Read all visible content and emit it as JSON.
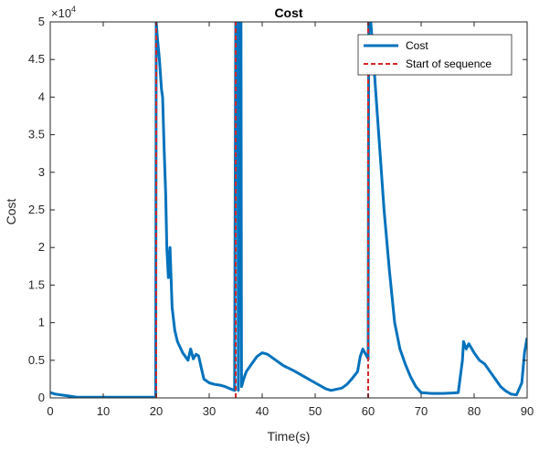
{
  "chart_data": {
    "type": "line",
    "title": "Cost",
    "xlabel": "Time(s)",
    "ylabel": "Cost",
    "xlim": [
      0,
      90
    ],
    "ylim": [
      0,
      50000
    ],
    "x_ticks": [
      0,
      10,
      20,
      30,
      40,
      50,
      60,
      70,
      80,
      90
    ],
    "x_tick_labels": [
      "0",
      "10",
      "20",
      "30",
      "40",
      "50",
      "60",
      "70",
      "80",
      "90"
    ],
    "y_ticks": [
      0,
      5000,
      10000,
      15000,
      20000,
      25000,
      30000,
      35000,
      40000,
      45000,
      50000
    ],
    "y_tick_labels": [
      "0",
      "0.5",
      "1",
      "1.5",
      "2",
      "2.5",
      "3",
      "3.5",
      "4",
      "4.5",
      "5"
    ],
    "y_exponent_base": "×10",
    "y_exponent_power": "4",
    "legend_position": "top-right",
    "grid": false,
    "series": [
      {
        "name": "Cost",
        "color": "#0072BD",
        "style": "solid",
        "x": [
          0,
          1,
          2,
          3,
          4,
          5,
          7,
          10,
          15,
          19.9,
          20,
          20.2,
          20.6,
          21,
          21.2,
          21.5,
          21.8,
          22,
          22.3,
          22.6,
          23,
          23.5,
          24,
          25,
          26,
          26.5,
          27,
          27.5,
          28,
          28.5,
          29,
          30,
          31,
          32,
          33,
          34,
          34.8,
          35,
          35.4,
          35.5,
          35.8,
          36,
          36.1,
          36.5,
          37,
          38,
          39,
          40,
          41,
          42,
          44,
          46,
          48,
          50,
          52,
          53,
          55,
          56,
          57,
          58,
          58.5,
          59,
          60,
          60.1,
          60.5,
          61,
          62,
          63,
          64,
          65,
          66,
          67,
          68,
          69,
          70,
          72,
          74,
          76,
          77,
          77.8,
          78,
          78.5,
          79,
          80,
          81,
          82,
          83,
          84,
          85,
          86,
          87,
          88,
          89,
          89.5,
          90
        ],
        "values": [
          700,
          500,
          400,
          300,
          200,
          100,
          100,
          100,
          100,
          100,
          50000,
          48000,
          45000,
          41000,
          40000,
          33000,
          27000,
          20000,
          16000,
          20000,
          12000,
          9000,
          7500,
          6000,
          5000,
          6500,
          5200,
          5800,
          5600,
          4000,
          2500,
          2000,
          1800,
          1700,
          1500,
          1200,
          1000,
          50000,
          50000,
          1000,
          50000,
          50000,
          1500,
          2500,
          3500,
          4500,
          5500,
          6000,
          5800,
          5300,
          4300,
          3600,
          2800,
          2000,
          1200,
          1000,
          1300,
          1800,
          2600,
          3500,
          5500,
          6500,
          5200,
          50000,
          50000,
          45000,
          35000,
          25000,
          17000,
          10000,
          6500,
          4500,
          2800,
          1500,
          700,
          600,
          600,
          650,
          700,
          5000,
          7500,
          6500,
          7200,
          6000,
          5000,
          4500,
          3500,
          2500,
          1500,
          900,
          500,
          400,
          2000,
          6000,
          8000
        ]
      },
      {
        "name": "Start of sequence",
        "color": "#D62728",
        "style": "dashed",
        "vertical_lines_x": [
          20,
          35,
          60
        ],
        "values": [
          0,
          50000
        ]
      }
    ]
  }
}
